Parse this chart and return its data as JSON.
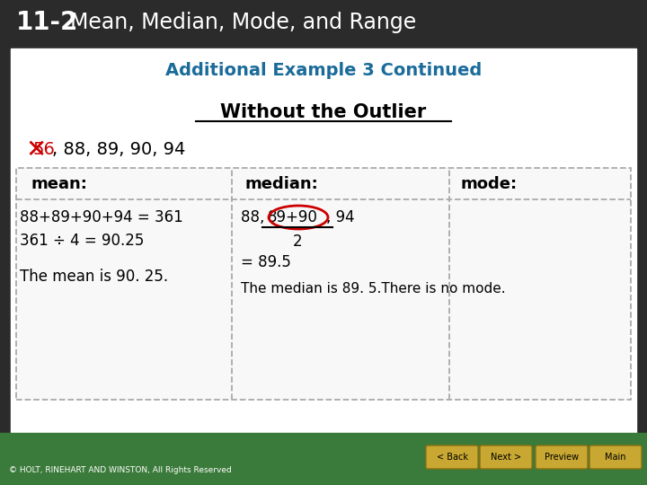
{
  "header_bg": "#2b2b2b",
  "header_text_num": "11-2",
  "header_text_title": "Mean, Median, Mode, and Range",
  "header_text_color": "#ffffff",
  "main_bg": "#ffffff",
  "subtitle_text": "Additional Example 3 Continued",
  "subtitle_color": "#1a6b9a",
  "underline_title": "Without the Outlier",
  "underline_title_color": "#000000",
  "sequence_text": ", 88, 89, 90, 94",
  "strikethrough_num": "56",
  "col1_header": "mean:",
  "col2_header": "median:",
  "col3_header": "mode:",
  "col1_line1": "88+89+90+94 = 361",
  "col1_line2": "361 ÷ 4 = 90.25",
  "col1_line3": "The mean is 90. 25.",
  "col2_line1_pre": "88, ",
  "col2_line1_mid": "89+90",
  "col2_line1_post": ", 94",
  "col2_line2": "2",
  "col2_line3": "= 89.5",
  "col2_line4": "The median is 89. 5.",
  "col3_line1": "There is no mode.",
  "footer_bg": "#3a7a3a",
  "footer_text": "© HOLT, RINEHART AND WINSTON, All Rights Reserved",
  "btn_bg": "#c8a832",
  "btn_texts": [
    "< Back",
    "Next >",
    "Preview",
    "Main"
  ],
  "box_border_color": "#aaaaaa",
  "col_divider_color": "#aaaaaa",
  "red_color": "#cc0000"
}
